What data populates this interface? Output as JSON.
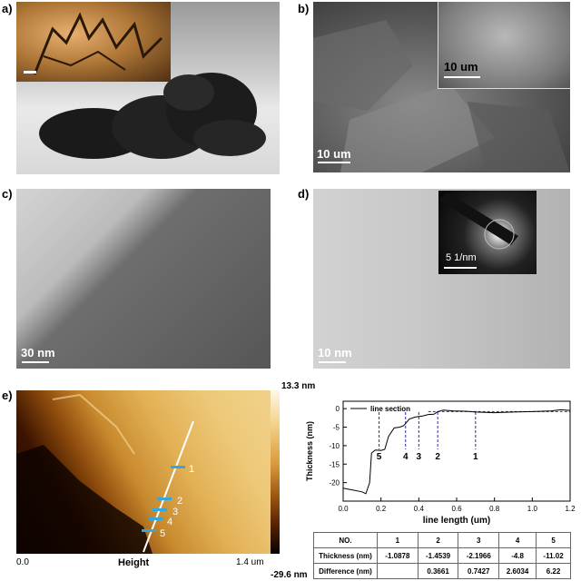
{
  "panel_labels": {
    "a": "a)",
    "b": "b)",
    "c": "c)",
    "d": "d)",
    "e": "e)"
  },
  "panel_b": {
    "scale_inset": "10 um",
    "scale_main": "10 um"
  },
  "panel_c": {
    "scale": "30 nm"
  },
  "panel_d": {
    "scale_main": "10 nm",
    "scale_inset": "5 1/nm"
  },
  "panel_e": {
    "colorbar_max": "13.3 nm",
    "colorbar_min": "-29.6 nm",
    "x_start": "0.0",
    "x_end": "1.4 um",
    "x_label": "Height",
    "markers": [
      "1",
      "2",
      "3",
      "4",
      "5"
    ]
  },
  "chart_data": {
    "type": "line",
    "xlabel": "line length (um)",
    "ylabel": "Thickness (nm)",
    "legend": "line section",
    "xlim": [
      0.0,
      1.2
    ],
    "ylim": [
      -25,
      2
    ],
    "xticks": [
      "0.0",
      "0.2",
      "0.4",
      "0.6",
      "0.8",
      "1.0",
      "1.2"
    ],
    "yticks": [
      "0",
      "-5",
      "-10",
      "-15",
      "-20"
    ],
    "series": [
      {
        "name": "line section",
        "x": [
          0.0,
          0.05,
          0.1,
          0.12,
          0.14,
          0.15,
          0.17,
          0.2,
          0.22,
          0.24,
          0.27,
          0.3,
          0.32,
          0.35,
          0.38,
          0.4,
          0.42,
          0.45,
          0.48,
          0.5,
          0.53,
          0.58,
          0.65,
          0.7,
          0.8,
          0.9,
          1.0,
          1.1,
          1.15,
          1.2
        ],
        "y": [
          -21.5,
          -22.0,
          -22.5,
          -23.0,
          -20.0,
          -12.0,
          -11.2,
          -11.3,
          -11.0,
          -7.5,
          -5.2,
          -5.0,
          -4.6,
          -2.8,
          -2.3,
          -2.1,
          -2.0,
          -1.6,
          -1.5,
          -0.8,
          -0.4,
          -0.6,
          -0.7,
          -0.9,
          -1.1,
          -0.9,
          -0.8,
          -0.6,
          -0.3,
          -0.5
        ]
      }
    ],
    "annotations": [
      {
        "label": "1",
        "x": 0.7
      },
      {
        "label": "2",
        "x": 0.5
      },
      {
        "label": "3",
        "x": 0.4
      },
      {
        "label": "4",
        "x": 0.33
      },
      {
        "label": "5",
        "x": 0.19
      }
    ]
  },
  "table": {
    "header": [
      "NO.",
      "1",
      "2",
      "3",
      "4",
      "5"
    ],
    "rows": [
      [
        "Thickness (nm)",
        "-1.0878",
        "-1.4539",
        "-2.1966",
        "-4.8",
        "-11.02"
      ],
      [
        "Difference (nm)",
        "",
        "0.3661",
        "0.7427",
        "2.6034",
        "6.22"
      ]
    ]
  }
}
